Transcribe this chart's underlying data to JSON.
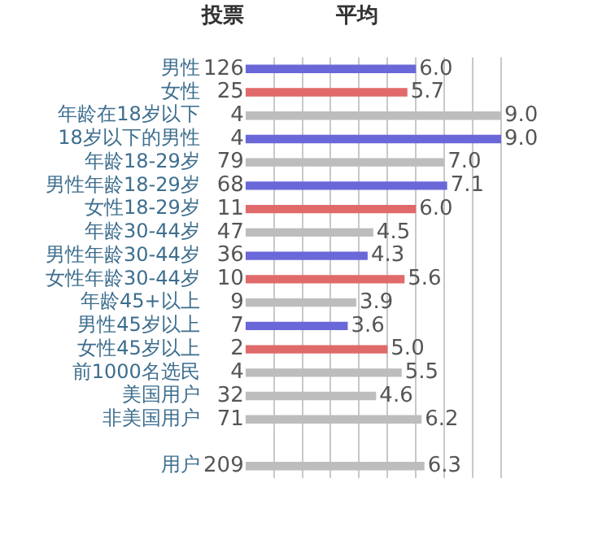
{
  "chart_data": {
    "type": "bar",
    "orientation": "horizontal",
    "categories": [
      "男性",
      "女性",
      "年龄在18岁以下",
      "18岁以下的男性",
      "年龄18-29岁",
      "男性年龄18-29岁",
      "女性18-29岁",
      "年龄30-44岁",
      "男性年龄30-44岁",
      "女性年龄30-44岁",
      "年龄45+以上",
      "男性45岁以上",
      "女性45岁以上",
      "前1000名选民",
      "美国用户",
      "非美国用户",
      null,
      "用户"
    ],
    "values": [
      6.0,
      5.7,
      9.0,
      9.0,
      7.0,
      7.1,
      6.0,
      4.5,
      4.3,
      5.6,
      3.9,
      3.6,
      5.0,
      5.5,
      4.6,
      6.2,
      null,
      6.3
    ],
    "value_labels": [
      "6.0",
      "5.7",
      "9.0",
      "9.0",
      "7.0",
      "7.1",
      "6.0",
      "4.5",
      "4.3",
      "5.6",
      "3.9",
      "3.6",
      "5.0",
      "5.5",
      "4.6",
      "6.2",
      null,
      "6.3"
    ],
    "colors": [
      "#6a67d8",
      "#e06a6a",
      "#bdbdbd",
      "#6a67d8",
      "#bdbdbd",
      "#6a67d8",
      "#e06a6a",
      "#bdbdbd",
      "#6a67d8",
      "#e06a6a",
      "#bdbdbd",
      "#6a67d8",
      "#e06a6a",
      "#bdbdbd",
      "#bdbdbd",
      "#bdbdbd",
      "#bdbdbd",
      "#bdbdbd"
    ],
    "xlim": [
      0,
      9
    ],
    "xticks": [
      {
        "value": 1,
        "label": null
      },
      {
        "value": 2,
        "label": null
      },
      {
        "value": 3,
        "label": null
      },
      {
        "value": 4,
        "label": null
      },
      {
        "value": 5,
        "label": null
      },
      {
        "value": 6,
        "label": null
      },
      {
        "value": 7,
        "label": null
      },
      {
        "value": 8,
        "label": null
      },
      {
        "value": 9,
        "label": null
      }
    ],
    "grid": "x",
    "legend": false,
    "tick_labels": "y",
    "annotations": [
      "投票",
      "平均",
      "126",
      "25",
      "4",
      "4",
      "79",
      "68",
      "11",
      "47",
      "36",
      "10",
      "9",
      "7",
      "2",
      "4",
      "32",
      "71",
      "209"
    ]
  }
}
